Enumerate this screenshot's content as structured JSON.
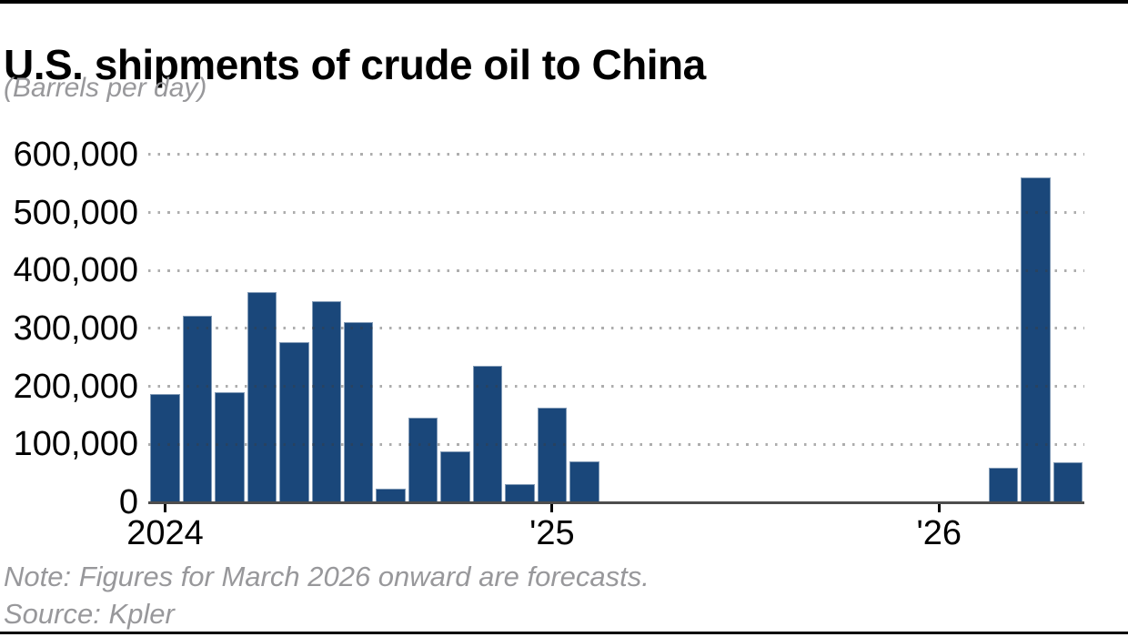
{
  "page": {
    "title": "U.S. shipments of crude oil to China",
    "subtitle": "(Barrels per day)",
    "note": "Note: Figures for March 2026 onward are forecasts.",
    "source": "Source: Kpler"
  },
  "colors": {
    "bar": "#1a477a",
    "axis_line": "#4d4d4d",
    "grid_dot": "rgba(60,60,60,0.42)",
    "muted_text": "#98989b",
    "tick": "#000000"
  },
  "chart_data": {
    "type": "bar",
    "title": "U.S. shipments of crude oil to China",
    "subtitle": "(Barrels per day)",
    "ylabel": "Barrels per day",
    "xlabel": "",
    "ylim": [
      0,
      600000
    ],
    "y_tick_interval": 100000,
    "y_tick_labels": [
      "0",
      "100,000",
      "200,000",
      "300,000",
      "400,000",
      "500,000",
      "600,000"
    ],
    "grid": "dotted horizontal gridlines, drawn over bars",
    "legend": "none",
    "note": "Figures for March 2026 onward are forecasts",
    "x_axis_ticks": [
      {
        "label": "2024",
        "month_index": 0
      },
      {
        "label": "'25",
        "month_index": 12
      },
      {
        "label": "'26",
        "month_index": 24
      }
    ],
    "categories": [
      "Jan 2024",
      "Feb 2024",
      "Mar 2024",
      "Apr 2024",
      "May 2024",
      "Jun 2024",
      "Jul 2024",
      "Aug 2024",
      "Sep 2024",
      "Oct 2024",
      "Nov 2024",
      "Dec 2024",
      "Jan 2025",
      "Feb 2025",
      "Mar 2025",
      "Apr 2025",
      "May 2025",
      "Jun 2025",
      "Jul 2025",
      "Aug 2025",
      "Sep 2025",
      "Oct 2025",
      "Nov 2025",
      "Dec 2025",
      "Jan 2026",
      "Feb 2026",
      "Mar 2026",
      "Apr 2026",
      "May 2026"
    ],
    "values": [
      187000,
      322000,
      190000,
      363000,
      277000,
      347000,
      311000,
      24000,
      146000,
      88000,
      236000,
      31000,
      163000,
      71000,
      0,
      0,
      0,
      0,
      0,
      0,
      0,
      0,
      0,
      0,
      0,
      0,
      59000,
      561000,
      69000
    ]
  }
}
